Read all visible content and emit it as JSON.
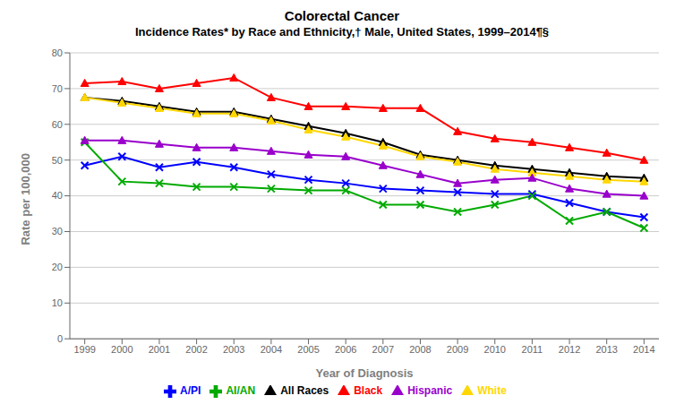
{
  "chart_data": {
    "type": "line",
    "title": "Colorectal Cancer",
    "subtitle": "Incidence Rates* by Race and Ethnicity,† Male, United States, 1999–2014¶§",
    "x_label": "Year of Diagnosis",
    "y_label": "Rate per 100,000",
    "x": [
      1999,
      2000,
      2001,
      2002,
      2003,
      2004,
      2005,
      2006,
      2007,
      2008,
      2009,
      2010,
      2011,
      2012,
      2013,
      2014
    ],
    "series": [
      {
        "name": "All Races",
        "color": "#000000",
        "marker": "triangle",
        "values": [
          67.5,
          66.5,
          65.0,
          63.5,
          63.5,
          61.5,
          59.5,
          57.5,
          55.0,
          51.5,
          50.0,
          48.5,
          47.5,
          46.5,
          45.5,
          45.0
        ]
      },
      {
        "name": "White",
        "color": "#FFD700",
        "marker": "triangle",
        "values": [
          67.5,
          66.0,
          64.5,
          63.0,
          63.0,
          61.0,
          58.5,
          56.5,
          54.0,
          51.0,
          49.5,
          47.5,
          46.5,
          45.5,
          44.5,
          44.0
        ]
      },
      {
        "name": "Black",
        "color": "#FF0000",
        "marker": "triangle",
        "values": [
          71.5,
          72.0,
          70.0,
          71.5,
          73.0,
          67.5,
          65.0,
          65.0,
          64.5,
          64.5,
          58.0,
          56.0,
          55.0,
          53.5,
          52.0,
          50.0
        ]
      },
      {
        "name": "A/PI",
        "color": "#0000FF",
        "marker": "x",
        "values": [
          48.5,
          51.0,
          48.0,
          49.5,
          48.0,
          46.0,
          44.5,
          43.5,
          42.0,
          41.5,
          41.0,
          40.5,
          40.5,
          38.0,
          35.5,
          34.0
        ]
      },
      {
        "name": "AI/AN",
        "color": "#00AA00",
        "marker": "x",
        "values": [
          55.0,
          44.0,
          43.5,
          42.5,
          42.5,
          42.0,
          41.5,
          41.5,
          37.5,
          37.5,
          35.5,
          37.5,
          40.0,
          33.0,
          35.5,
          31.0
        ]
      },
      {
        "name": "Hispanic",
        "color": "#9900CC",
        "marker": "triangle",
        "values": [
          55.5,
          55.5,
          54.5,
          53.5,
          53.5,
          52.5,
          51.5,
          51.0,
          48.5,
          46.0,
          43.5,
          44.5,
          45.0,
          42.0,
          40.5,
          40.0
        ]
      }
    ],
    "xlim": [
      1998.6,
      2014.4
    ],
    "xticks": [
      1999,
      2000,
      2001,
      2002,
      2003,
      2004,
      2005,
      2006,
      2007,
      2008,
      2009,
      2010,
      2011,
      2012,
      2013,
      2014
    ],
    "ylim": [
      0,
      80
    ],
    "yticks": [
      0,
      10,
      20,
      30,
      40,
      50,
      60,
      70,
      80
    ],
    "grid": true,
    "legend": "bottom"
  }
}
